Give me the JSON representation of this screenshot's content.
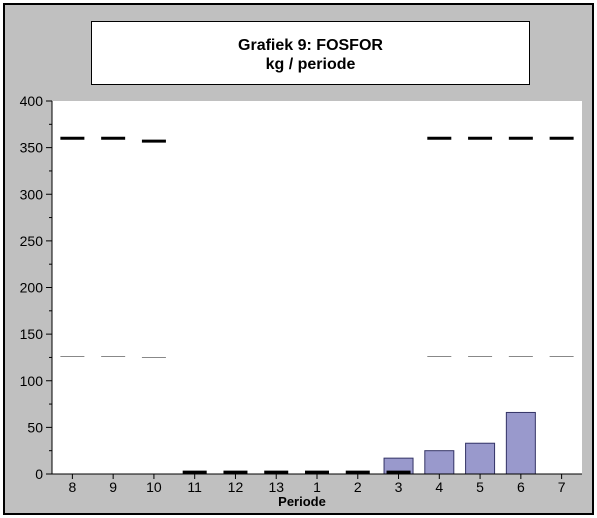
{
  "chart_data": {
    "type": "bar",
    "title": "Grafiek 9: FOSFOR",
    "subtitle": "kg / periode",
    "xlabel": "Periode",
    "ylabel": "",
    "ylim": [
      0,
      400
    ],
    "yticks": [
      0,
      50,
      100,
      150,
      200,
      250,
      300,
      350,
      400
    ],
    "grid": false,
    "legend": "none",
    "categories": [
      "8",
      "9",
      "10",
      "11",
      "12",
      "13",
      "1",
      "2",
      "3",
      "4",
      "5",
      "6",
      "7"
    ],
    "series": [
      {
        "type": "bar",
        "values": [
          0,
          0,
          0,
          0,
          0,
          0,
          0,
          0,
          17,
          25,
          33,
          66,
          0
        ],
        "color": "#9999cc"
      },
      {
        "type": "level-marker",
        "values": [
          360,
          360,
          357,
          2,
          2,
          2,
          2,
          2,
          2,
          360,
          360,
          360,
          360
        ],
        "color": "#000000",
        "style": "thick"
      },
      {
        "type": "level-marker",
        "values": [
          126,
          126,
          125,
          null,
          null,
          null,
          null,
          null,
          null,
          126,
          126,
          126,
          126
        ],
        "color": "#888888",
        "style": "thin"
      }
    ],
    "colors": {
      "frame_background": "#c0c0c0",
      "plot_background": "#ffffff",
      "bar_fill": "#9999cc",
      "bar_stroke": "#333366"
    }
  }
}
